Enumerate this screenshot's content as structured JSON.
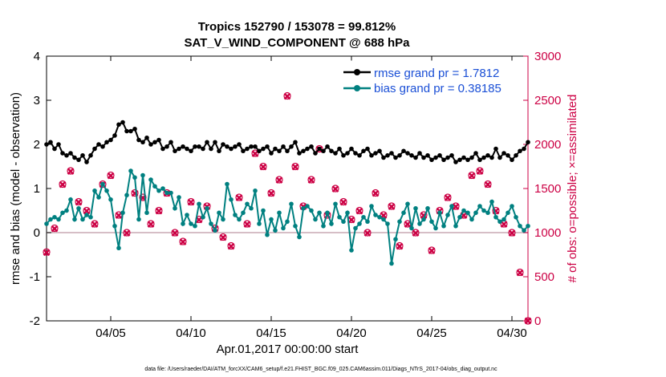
{
  "chart_data": {
    "type": "line",
    "title": "Tropics 152790 / 153078 = 99.812%",
    "subtitle": "SAT_V_WIND_COMPONENT @ 688 hPa",
    "xlabel": "Apr.01,2017 00:00:00 start",
    "ylabel_left": "rmse and bias (model - observation)",
    "ylabel_right": "# of obs: o=possible; ×=assimilated",
    "ylim_left": [
      -2,
      4
    ],
    "ylim_right": [
      0,
      3000
    ],
    "xlim": [
      1,
      31
    ],
    "yticks_left": [
      "-2",
      "-1",
      "0",
      "1",
      "2",
      "3",
      "4"
    ],
    "yticks_right": [
      "0",
      "500",
      "1000",
      "1500",
      "2000",
      "2500",
      "3000"
    ],
    "xticks": [
      {
        "value": 5,
        "label": "04/05"
      },
      {
        "value": 10,
        "label": "04/10"
      },
      {
        "value": 15,
        "label": "04/15"
      },
      {
        "value": 20,
        "label": "04/20"
      },
      {
        "value": 25,
        "label": "04/25"
      },
      {
        "value": 30,
        "label": "04/30"
      }
    ],
    "footnote": "data file: /Users/raeder/DAI/ATM_forcXX/CAM6_setup/f.e21.FHIST_BGC.f09_025.CAM6assim.011/Diags_NTrS_2017-04/obs_diag_output.nc",
    "series": [
      {
        "name": "rmse grand pr = 1.7812",
        "color": "#000000",
        "marker": "filled-circle",
        "axis": "left",
        "x": [
          1.0,
          1.25,
          1.5,
          1.75,
          2.0,
          2.25,
          2.5,
          2.75,
          3.0,
          3.25,
          3.5,
          3.75,
          4.0,
          4.25,
          4.5,
          4.75,
          5.0,
          5.25,
          5.5,
          5.75,
          6.0,
          6.25,
          6.5,
          6.75,
          7.0,
          7.25,
          7.5,
          7.75,
          8.0,
          8.25,
          8.5,
          8.75,
          9.0,
          9.25,
          9.5,
          9.75,
          10.0,
          10.25,
          10.5,
          10.75,
          11.0,
          11.25,
          11.5,
          11.75,
          12.0,
          12.25,
          12.5,
          12.75,
          13.0,
          13.25,
          13.5,
          13.75,
          14.0,
          14.25,
          14.5,
          14.75,
          15.0,
          15.25,
          15.5,
          15.75,
          16.0,
          16.25,
          16.5,
          16.75,
          17.0,
          17.25,
          17.5,
          17.75,
          18.0,
          18.25,
          18.5,
          18.75,
          19.0,
          19.25,
          19.5,
          19.75,
          20.0,
          20.25,
          20.5,
          20.75,
          21.0,
          21.25,
          21.5,
          21.75,
          22.0,
          22.25,
          22.5,
          22.75,
          23.0,
          23.25,
          23.5,
          23.75,
          24.0,
          24.25,
          24.5,
          24.75,
          25.0,
          25.25,
          25.5,
          25.75,
          26.0,
          26.25,
          26.5,
          26.75,
          27.0,
          27.25,
          27.5,
          27.75,
          28.0,
          28.25,
          28.5,
          28.75,
          29.0,
          29.25,
          29.5,
          29.75,
          30.0,
          30.25,
          30.5,
          30.75,
          31.0
        ],
        "y": [
          2.0,
          2.05,
          1.9,
          2.0,
          1.8,
          1.75,
          1.8,
          1.7,
          1.65,
          1.75,
          1.6,
          1.75,
          1.9,
          2.0,
          1.95,
          2.05,
          2.1,
          2.2,
          2.45,
          2.5,
          2.3,
          2.3,
          2.35,
          2.1,
          2.05,
          2.15,
          2.0,
          2.05,
          2.1,
          1.9,
          1.95,
          2.05,
          1.85,
          1.9,
          1.95,
          1.9,
          1.85,
          1.95,
          1.95,
          1.9,
          2.05,
          1.9,
          2.05,
          1.85,
          2.0,
          1.95,
          1.9,
          1.95,
          2.0,
          1.85,
          1.9,
          1.95,
          1.95,
          1.85,
          1.9,
          1.95,
          1.8,
          1.9,
          1.85,
          1.95,
          1.85,
          1.95,
          2.05,
          1.8,
          1.85,
          1.9,
          1.95,
          1.8,
          1.9,
          1.85,
          1.95,
          1.85,
          1.8,
          1.9,
          1.75,
          1.8,
          1.9,
          1.8,
          1.75,
          1.85,
          1.9,
          1.75,
          1.8,
          1.85,
          1.7,
          1.75,
          1.8,
          1.7,
          1.75,
          1.85,
          1.8,
          1.75,
          1.7,
          1.8,
          1.7,
          1.75,
          1.65,
          1.7,
          1.75,
          1.65,
          1.7,
          1.75,
          1.6,
          1.65,
          1.7,
          1.65,
          1.7,
          1.8,
          1.65,
          1.7,
          1.75,
          1.7,
          1.9,
          1.7,
          1.8,
          1.75,
          1.65,
          1.75,
          1.85,
          1.9,
          2.05
        ],
        "yfill_note": "approximate readings"
      },
      {
        "name": "bias grand pr = 0.38185",
        "color": "#008080",
        "marker": "filled-circle",
        "axis": "left",
        "x": [
          1.0,
          1.25,
          1.5,
          1.75,
          2.0,
          2.25,
          2.5,
          2.75,
          3.0,
          3.25,
          3.5,
          3.75,
          4.0,
          4.25,
          4.5,
          4.75,
          5.0,
          5.25,
          5.5,
          5.75,
          6.0,
          6.25,
          6.5,
          6.75,
          7.0,
          7.25,
          7.5,
          7.75,
          8.0,
          8.25,
          8.5,
          8.75,
          9.0,
          9.25,
          9.5,
          9.75,
          10.0,
          10.25,
          10.5,
          10.75,
          11.0,
          11.25,
          11.5,
          11.75,
          12.0,
          12.25,
          12.5,
          12.75,
          13.0,
          13.25,
          13.5,
          13.75,
          14.0,
          14.25,
          14.5,
          14.75,
          15.0,
          15.25,
          15.5,
          15.75,
          16.0,
          16.25,
          16.5,
          16.75,
          17.0,
          17.25,
          17.5,
          17.75,
          18.0,
          18.25,
          18.5,
          18.75,
          19.0,
          19.25,
          19.5,
          19.75,
          20.0,
          20.25,
          20.5,
          20.75,
          21.0,
          21.25,
          21.5,
          21.75,
          22.0,
          22.25,
          22.5,
          22.75,
          23.0,
          23.25,
          23.5,
          23.75,
          24.0,
          24.25,
          24.5,
          24.75,
          25.0,
          25.25,
          25.5,
          25.75,
          26.0,
          26.25,
          26.5,
          26.75,
          27.0,
          27.25,
          27.5,
          27.75,
          28.0,
          28.25,
          28.5,
          28.75,
          29.0,
          29.25,
          29.5,
          29.75,
          30.0,
          30.25,
          30.5,
          30.75,
          31.0
        ],
        "y": [
          0.2,
          0.3,
          0.35,
          0.3,
          0.45,
          0.5,
          0.75,
          0.3,
          0.55,
          0.3,
          0.4,
          0.35,
          0.95,
          0.8,
          1.1,
          0.95,
          0.75,
          0.15,
          -0.35,
          0.45,
          0.85,
          1.4,
          1.25,
          0.3,
          1.3,
          0.45,
          1.2,
          1.05,
          0.95,
          1.0,
          0.9,
          0.9,
          0.55,
          0.8,
          0.2,
          0.4,
          0.2,
          0.15,
          0.65,
          0.35,
          0.55,
          0.2,
          0.05,
          0.45,
          0.3,
          1.1,
          0.75,
          0.4,
          0.3,
          0.45,
          0.65,
          0.55,
          0.95,
          0.2,
          0.5,
          -0.05,
          0.3,
          0.05,
          0.45,
          0.1,
          0.25,
          0.65,
          0.15,
          -0.1,
          0.55,
          0.6,
          0.5,
          0.3,
          0.45,
          0.15,
          0.45,
          0.2,
          0.65,
          0.35,
          0.25,
          0.45,
          -0.4,
          0.1,
          0.2,
          0.35,
          0.25,
          0.6,
          0.4,
          0.35,
          0.3,
          0.2,
          -0.7,
          -0.15,
          0.25,
          0.45,
          0.65,
          0.1,
          0.55,
          0.2,
          0.3,
          0.55,
          0.25,
          0.1,
          0.45,
          0.15,
          0.4,
          0.6,
          0.15,
          0.35,
          0.5,
          0.45,
          0.3,
          0.45,
          0.6,
          0.5,
          0.45,
          0.7,
          0.35,
          0.25,
          0.3,
          0.45,
          0.6,
          0.35,
          0.15,
          0.05,
          0.15
        ]
      },
      {
        "name": "obs possible",
        "color": "#cc0044",
        "marker": "circle",
        "axis": "right",
        "x": [
          1.0,
          1.5,
          2.0,
          2.5,
          3.0,
          3.5,
          4.0,
          4.5,
          5.0,
          5.5,
          6.0,
          6.5,
          7.0,
          7.5,
          8.0,
          8.5,
          9.0,
          9.5,
          10.0,
          10.5,
          11.0,
          11.5,
          12.0,
          12.5,
          13.0,
          13.5,
          14.0,
          14.5,
          15.0,
          15.5,
          16.0,
          16.5,
          17.0,
          17.5,
          18.0,
          18.5,
          19.0,
          19.5,
          20.0,
          20.5,
          21.0,
          21.5,
          22.0,
          22.5,
          23.0,
          23.5,
          24.0,
          24.5,
          25.0,
          25.5,
          26.0,
          26.5,
          27.0,
          27.5,
          28.0,
          28.5,
          29.0,
          29.5,
          30.0,
          30.5,
          31.0
        ],
        "y": [
          780,
          1050,
          1550,
          1700,
          1350,
          1250,
          1100,
          1550,
          1650,
          1200,
          1000,
          1450,
          1400,
          1100,
          1250,
          1450,
          1000,
          900,
          1350,
          1150,
          1300,
          1050,
          950,
          850,
          1400,
          1100,
          1900,
          1750,
          1450,
          1600,
          2550,
          1750,
          1300,
          1600,
          1950,
          1200,
          1500,
          1350,
          1150,
          1250,
          1000,
          1450,
          1200,
          1300,
          850,
          1100,
          1000,
          1200,
          800,
          1250,
          1400,
          1300,
          1200,
          1650,
          1700,
          1550,
          1250,
          1100,
          1000,
          550,
          0
        ]
      },
      {
        "name": "obs assimilated",
        "color": "#cc0044",
        "marker": "x",
        "axis": "right",
        "x": [
          1.0,
          1.5,
          2.0,
          2.5,
          3.0,
          3.5,
          4.0,
          4.5,
          5.0,
          5.5,
          6.0,
          6.5,
          7.0,
          7.5,
          8.0,
          8.5,
          9.0,
          9.5,
          10.0,
          10.5,
          11.0,
          11.5,
          12.0,
          12.5,
          13.0,
          13.5,
          14.0,
          14.5,
          15.0,
          15.5,
          16.0,
          16.5,
          17.0,
          17.5,
          18.0,
          18.5,
          19.0,
          19.5,
          20.0,
          20.5,
          21.0,
          21.5,
          22.0,
          22.5,
          23.0,
          23.5,
          24.0,
          24.5,
          25.0,
          25.5,
          26.0,
          26.5,
          27.0,
          27.5,
          28.0,
          28.5,
          29.0,
          29.5,
          30.0,
          30.5,
          31.0
        ],
        "y": [
          775,
          1045,
          1545,
          1695,
          1345,
          1245,
          1095,
          1545,
          1645,
          1195,
          995,
          1445,
          1395,
          1095,
          1245,
          1445,
          995,
          895,
          1345,
          1145,
          1295,
          1045,
          945,
          845,
          1395,
          1095,
          1895,
          1745,
          1445,
          1595,
          2545,
          1745,
          1295,
          1595,
          1945,
          1195,
          1495,
          1345,
          1145,
          1245,
          995,
          1445,
          1195,
          1295,
          845,
          1095,
          995,
          1195,
          795,
          1245,
          1395,
          1295,
          1195,
          1645,
          1695,
          1545,
          1245,
          1095,
          995,
          545,
          0
        ]
      }
    ]
  }
}
